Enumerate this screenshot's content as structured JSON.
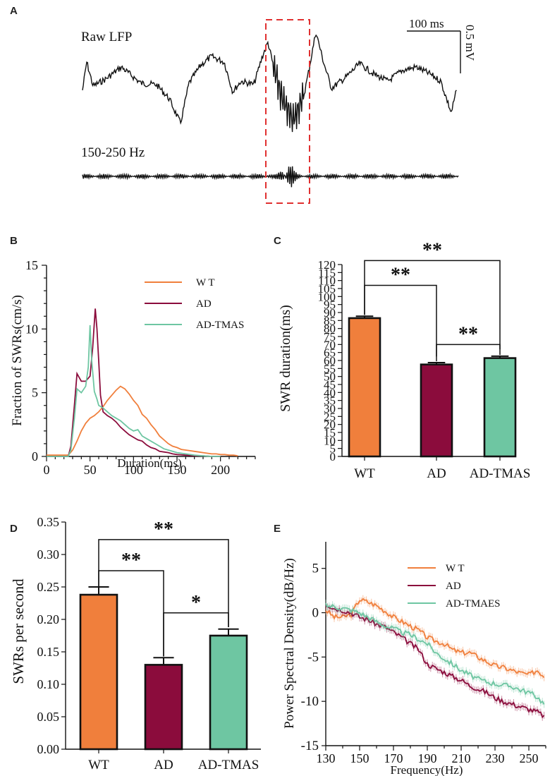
{
  "colors": {
    "wt": "#f07f3c",
    "ad": "#8b0c3c",
    "tmas": "#6ec6a2",
    "box": "#e03030",
    "ink": "#111111"
  },
  "panel_letters": [
    "A",
    "B",
    "C",
    "D",
    "E"
  ],
  "chart_data": [
    {
      "panel": "A",
      "type": "line",
      "labels": {
        "raw": "Raw LFP",
        "filtered": "150-250 Hz"
      },
      "scale_bar": {
        "time": "100 ms",
        "voltage": "0.5 mV"
      },
      "annotation": "red dashed box marks ripple event"
    },
    {
      "panel": "B",
      "type": "line",
      "xlabel": "Duration(ms)",
      "ylabel": "Fraction of SWRs(cm/s)",
      "xlim": [
        0,
        240
      ],
      "ylim": [
        0,
        15
      ],
      "xticks": [
        0,
        50,
        100,
        150,
        200
      ],
      "yticks": [
        0,
        5,
        10,
        15
      ],
      "legend": [
        "W T",
        "AD",
        "AD-TMAS"
      ],
      "series": [
        {
          "name": "WT",
          "color_key": "wt",
          "x": [
            0,
            10,
            20,
            25,
            30,
            35,
            40,
            45,
            50,
            55,
            60,
            65,
            70,
            75,
            80,
            85,
            90,
            95,
            100,
            105,
            110,
            115,
            120,
            125,
            130,
            135,
            140,
            145,
            150,
            155,
            160,
            165,
            170,
            175,
            180,
            185,
            190,
            195,
            200,
            205,
            210,
            215,
            220
          ],
          "y": [
            0.1,
            0.1,
            0.1,
            0.1,
            0.5,
            1.2,
            2,
            2.6,
            3,
            3.2,
            3.5,
            3.9,
            4.4,
            4.8,
            5.2,
            5.5,
            5.3,
            4.9,
            4.4,
            4,
            3.3,
            3,
            2.5,
            2.1,
            1.6,
            1.3,
            1,
            0.8,
            0.7,
            0.55,
            0.5,
            0.45,
            0.4,
            0.35,
            0.3,
            0.25,
            0.2,
            0.2,
            0.15,
            0.15,
            0.1,
            0.1,
            0.05
          ]
        },
        {
          "name": "AD",
          "color_key": "ad",
          "x": [
            0,
            10,
            20,
            25,
            28,
            32,
            35,
            40,
            45,
            50,
            53,
            56,
            58,
            60,
            62,
            65,
            70,
            75,
            80,
            85,
            90,
            95,
            100,
            105,
            110,
            115,
            120,
            125,
            130,
            135,
            140,
            145,
            150,
            160,
            170,
            180,
            190,
            200
          ],
          "y": [
            0,
            0,
            0,
            0,
            0.8,
            4,
            6.5,
            5.9,
            5.9,
            6.3,
            8.5,
            11.6,
            10,
            7.5,
            4.8,
            3.5,
            3.2,
            3,
            2.7,
            2.3,
            2,
            1.7,
            1.5,
            1.3,
            1.2,
            0.9,
            0.7,
            0.6,
            0.4,
            0.35,
            0.3,
            0.2,
            0.15,
            0.1,
            0.05,
            0.05,
            0,
            0
          ]
        },
        {
          "name": "AD-TMAS",
          "color_key": "tmas",
          "x": [
            0,
            10,
            20,
            25,
            28,
            32,
            35,
            40,
            45,
            48,
            50,
            52,
            55,
            58,
            60,
            65,
            70,
            75,
            80,
            85,
            90,
            95,
            100,
            105,
            110,
            115,
            120,
            125,
            130,
            135,
            140,
            145,
            150,
            160,
            170,
            180,
            190,
            200
          ],
          "y": [
            0,
            0,
            0,
            0,
            0.5,
            3,
            5.3,
            5,
            5.5,
            7,
            10.3,
            7.5,
            5.1,
            4.5,
            4,
            3.8,
            3.5,
            3.2,
            3,
            2.8,
            2.5,
            2.2,
            2,
            2.1,
            1.6,
            1.4,
            1.2,
            1,
            0.8,
            0.6,
            0.5,
            0.4,
            0.3,
            0.2,
            0.1,
            0.05,
            0,
            0
          ]
        }
      ]
    },
    {
      "panel": "C",
      "type": "bar",
      "ylabel": "SWR duration(ms)",
      "categories": [
        "WT",
        "AD",
        "AD-TMAS"
      ],
      "color_keys": [
        "wt",
        "ad",
        "tmas"
      ],
      "values": [
        86.5,
        57.5,
        61.5
      ],
      "errors": [
        1.2,
        1.2,
        1.2
      ],
      "ylim": [
        0,
        120
      ],
      "yticks": [
        0,
        5,
        10,
        15,
        20,
        25,
        30,
        35,
        40,
        45,
        50,
        55,
        60,
        65,
        70,
        75,
        80,
        85,
        90,
        95,
        100,
        105,
        110,
        115,
        120
      ],
      "significance": [
        {
          "from": 0,
          "to": 2,
          "label": "**"
        },
        {
          "from": 0,
          "to": 1,
          "label": "**"
        },
        {
          "from": 1,
          "to": 2,
          "label": "**"
        }
      ]
    },
    {
      "panel": "D",
      "type": "bar",
      "ylabel": "SWRs per second",
      "categories": [
        "WT",
        "AD",
        "AD-TMAS"
      ],
      "color_keys": [
        "wt",
        "ad",
        "tmas"
      ],
      "values": [
        0.238,
        0.13,
        0.175
      ],
      "errors": [
        0.012,
        0.011,
        0.01
      ],
      "ylim": [
        0,
        0.35
      ],
      "yticks": [
        "0.00",
        "0.05",
        "0.10",
        "0.15",
        "0.20",
        "0.25",
        "0.30",
        "0.35"
      ],
      "significance": [
        {
          "from": 0,
          "to": 2,
          "label": "**"
        },
        {
          "from": 0,
          "to": 1,
          "label": "**"
        },
        {
          "from": 1,
          "to": 2,
          "label": "*"
        }
      ]
    },
    {
      "panel": "E",
      "type": "line",
      "xlabel": "Frequency(Hz)",
      "ylabel": "Power Spectral Density(dB/Hz)",
      "xlim": [
        130,
        260
      ],
      "ylim": [
        -15,
        8
      ],
      "xticks": [
        130,
        150,
        170,
        190,
        210,
        230,
        250
      ],
      "yticks": [
        5,
        0,
        -5,
        -10,
        -15
      ],
      "legend": [
        "W T",
        "AD",
        "AD-TMAES"
      ],
      "series": [
        {
          "name": "WT",
          "color_key": "wt",
          "x": [
            130,
            135,
            140,
            145,
            150,
            155,
            160,
            165,
            170,
            175,
            180,
            185,
            190,
            195,
            200,
            205,
            210,
            215,
            220,
            225,
            230,
            235,
            240,
            245,
            250,
            255,
            260
          ],
          "y": [
            0.3,
            -0.5,
            -0.5,
            -0.2,
            1.5,
            1.2,
            0.8,
            0.2,
            -0.5,
            -1,
            -1.5,
            -2,
            -2.8,
            -3.2,
            -3.5,
            -4.2,
            -4.5,
            -4.5,
            -5,
            -5.5,
            -6,
            -6.2,
            -6.5,
            -6.8,
            -7,
            -6.5,
            -7.3
          ]
        },
        {
          "name": "AD",
          "color_key": "ad",
          "x": [
            130,
            135,
            140,
            145,
            150,
            155,
            160,
            165,
            170,
            175,
            180,
            185,
            190,
            195,
            200,
            205,
            210,
            215,
            220,
            225,
            230,
            235,
            240,
            245,
            250,
            255,
            260
          ],
          "y": [
            1,
            0.5,
            0.3,
            0,
            -0.5,
            -0.8,
            -1.3,
            -1.6,
            -2.2,
            -2.8,
            -3.5,
            -4.2,
            -5.8,
            -6.3,
            -6.7,
            -7.2,
            -7.6,
            -8.2,
            -8.6,
            -9,
            -9.6,
            -10,
            -10.3,
            -10.6,
            -10.9,
            -11.2,
            -11.8
          ]
        },
        {
          "name": "AD-TMAES",
          "color_key": "tmas",
          "x": [
            130,
            135,
            140,
            145,
            150,
            155,
            160,
            165,
            170,
            175,
            180,
            185,
            190,
            195,
            200,
            205,
            210,
            215,
            220,
            225,
            230,
            235,
            240,
            245,
            250,
            255,
            260
          ],
          "y": [
            0.8,
            0.7,
            0.5,
            0.3,
            0,
            -0.5,
            -1,
            -1.5,
            -1.8,
            -2.2,
            -2.5,
            -3,
            -3.5,
            -4.5,
            -5.2,
            -5.8,
            -6.5,
            -7,
            -7.5,
            -7.8,
            -8,
            -8.2,
            -8.3,
            -8.7,
            -9,
            -9.5,
            -10.5
          ]
        }
      ]
    }
  ]
}
